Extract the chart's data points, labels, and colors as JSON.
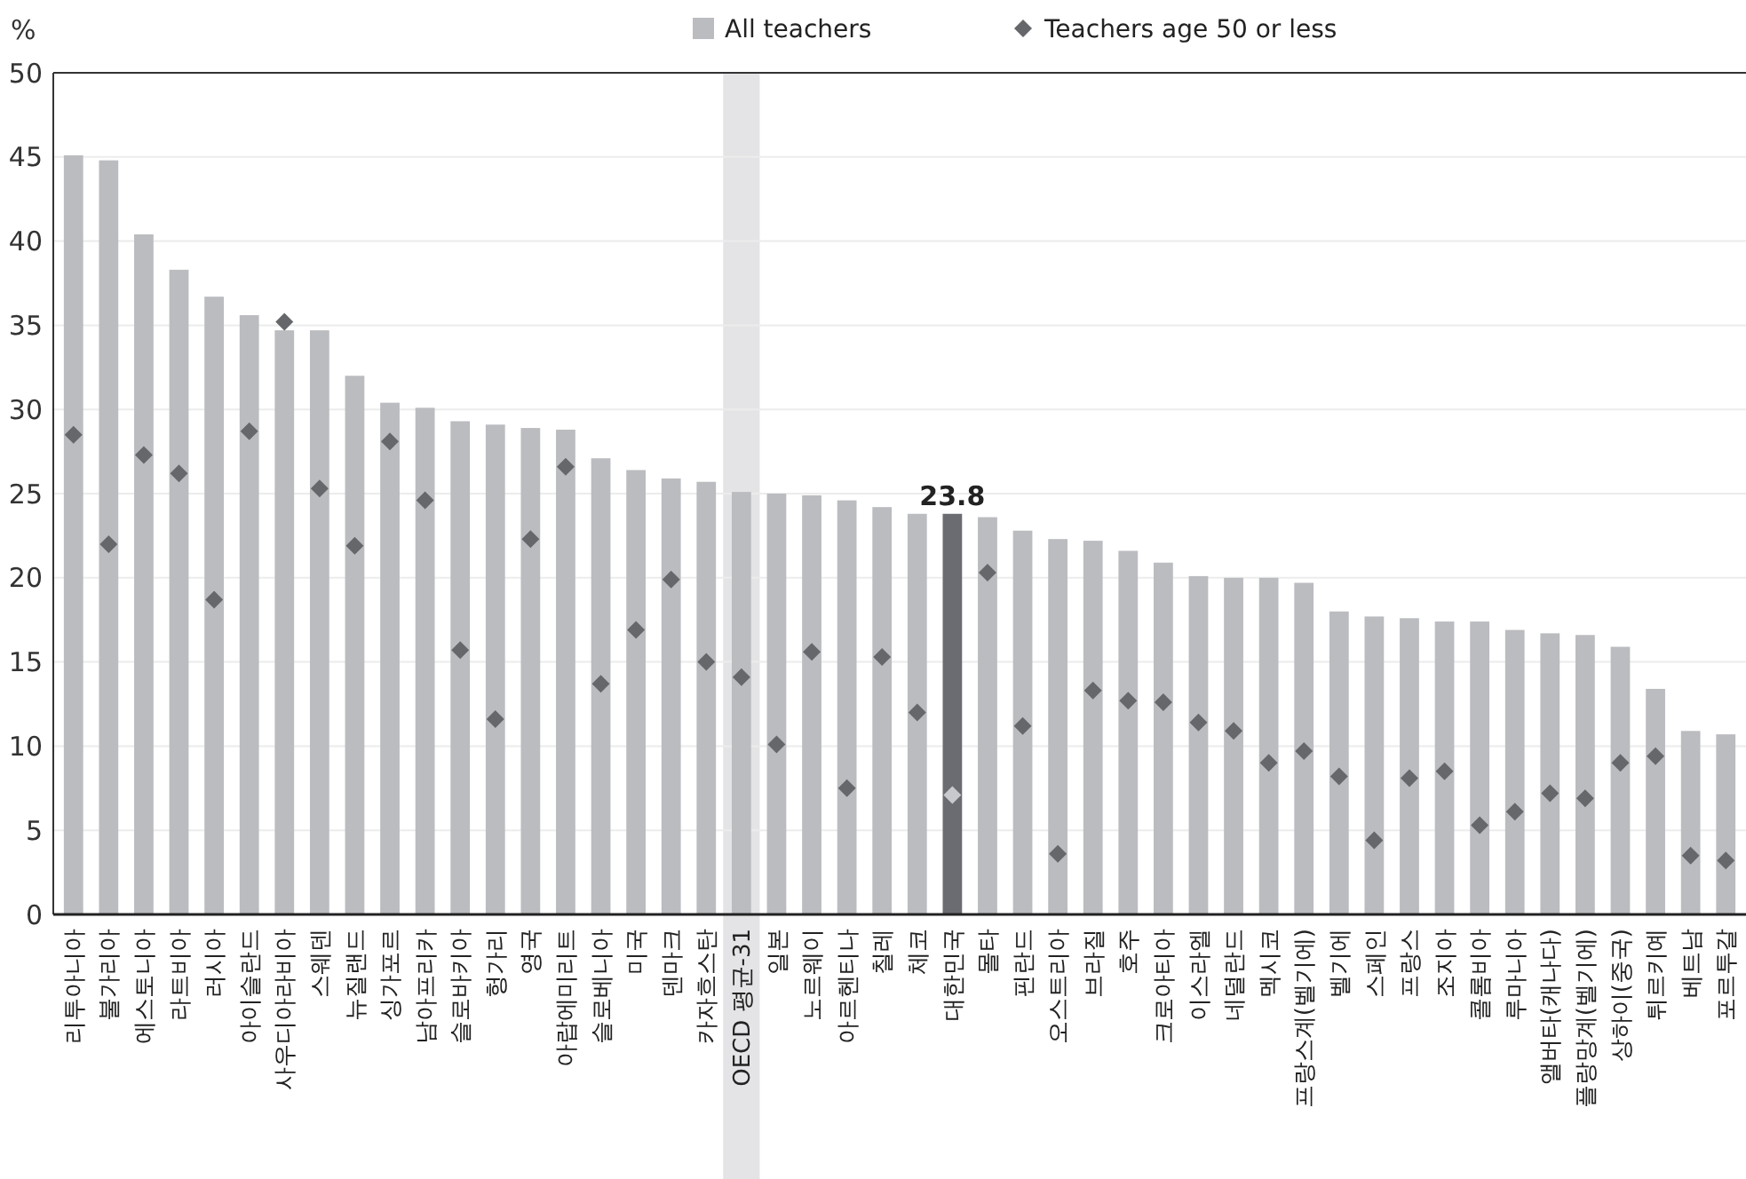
{
  "chart_data": {
    "type": "bar",
    "ylabel": "%",
    "categories": [
      "리투아니아",
      "불가리아",
      "에스토니아",
      "라트비아",
      "러시아",
      "아이슬란드",
      "사우디아라비아",
      "스웨덴",
      "뉴질랜드",
      "싱가포르",
      "남아프리카",
      "슬로바키아",
      "헝가리",
      "영국",
      "아랍에미리트",
      "슬로베니아",
      "미국",
      "덴마크",
      "카자흐스탄",
      "OECD 평균-31",
      "일본",
      "노르웨이",
      "아르헨티나",
      "칠레",
      "체코",
      "대한민국",
      "몰타",
      "핀란드",
      "오스트리아",
      "브라질",
      "호주",
      "크로아티아",
      "이스라엘",
      "네덜란드",
      "멕시코",
      "프랑스계(벨기에)",
      "벨기에",
      "스페인",
      "프랑스",
      "조지아",
      "콜롬비아",
      "루마니아",
      "앨버타(캐나다)",
      "플랑망계(벨기에)",
      "상하이(중국)",
      "튀르키예",
      "베트남",
      "포르투갈"
    ],
    "series": [
      {
        "name": "All teachers",
        "color": "#bbbcc0",
        "colors": [
          "#bbbcc0",
          "#bbbcc0",
          "#bbbcc0",
          "#bbbcc0",
          "#bbbcc0",
          "#bbbcc0",
          "#bbbcc0",
          "#bbbcc0",
          "#bbbcc0",
          "#bbbcc0",
          "#bbbcc0",
          "#bbbcc0",
          "#bbbcc0",
          "#bbbcc0",
          "#bbbcc0",
          "#bbbcc0",
          "#bbbcc0",
          "#bbbcc0",
          "#bbbcc0",
          "#bbbcc0",
          "#bbbcc0",
          "#bbbcc0",
          "#bbbcc0",
          "#bbbcc0",
          "#bbbcc0",
          "#6b6c71",
          "#bbbcc0",
          "#bbbcc0",
          "#bbbcc0",
          "#bbbcc0",
          "#bbbcc0",
          "#bbbcc0",
          "#bbbcc0",
          "#bbbcc0",
          "#bbbcc0",
          "#bbbcc0",
          "#bbbcc0",
          "#bbbcc0",
          "#bbbcc0",
          "#bbbcc0",
          "#bbbcc0",
          "#bbbcc0",
          "#bbbcc0",
          "#bbbcc0",
          "#bbbcc0",
          "#bbbcc0",
          "#bbbcc0",
          "#bbbcc0"
        ],
        "values": [
          45.1,
          44.8,
          40.4,
          38.3,
          36.7,
          35.6,
          34.7,
          34.7,
          32.0,
          30.4,
          30.1,
          29.3,
          29.1,
          28.9,
          28.8,
          27.1,
          26.4,
          25.9,
          25.7,
          25.1,
          25.0,
          24.9,
          24.6,
          24.2,
          23.8,
          23.8,
          23.6,
          22.8,
          22.3,
          22.2,
          21.6,
          20.9,
          20.1,
          20.0,
          20.0,
          19.7,
          18.0,
          17.7,
          17.6,
          17.4,
          17.4,
          16.9,
          16.7,
          16.6,
          15.9,
          13.4,
          10.9,
          10.7
        ],
        "value_labels": [
          null,
          null,
          null,
          null,
          null,
          null,
          null,
          null,
          null,
          null,
          null,
          null,
          null,
          null,
          null,
          null,
          null,
          null,
          null,
          null,
          null,
          null,
          null,
          null,
          null,
          "23.8",
          null,
          null,
          null,
          null,
          null,
          null,
          null,
          null,
          null,
          null,
          null,
          null,
          null,
          null,
          null,
          null,
          null,
          null,
          null,
          null,
          null,
          null
        ]
      },
      {
        "name": "Teachers age 50 or less",
        "type": "scatter",
        "marker": "diamond",
        "color": "#66676b",
        "colors": [
          "#66676b",
          "#66676b",
          "#66676b",
          "#66676b",
          "#66676b",
          "#66676b",
          "#66676b",
          "#66676b",
          "#66676b",
          "#66676b",
          "#66676b",
          "#66676b",
          "#66676b",
          "#66676b",
          "#66676b",
          "#66676b",
          "#66676b",
          "#66676b",
          "#66676b",
          "#66676b",
          "#66676b",
          "#66676b",
          "#66676b",
          "#66676b",
          "#66676b",
          "#c8c9cc",
          "#66676b",
          "#66676b",
          "#66676b",
          "#66676b",
          "#66676b",
          "#66676b",
          "#66676b",
          "#66676b",
          "#66676b",
          "#66676b",
          "#66676b",
          "#66676b",
          "#66676b",
          "#66676b",
          "#66676b",
          "#66676b",
          "#66676b",
          "#66676b",
          "#66676b",
          "#66676b",
          "#66676b",
          "#66676b"
        ],
        "x": [
          "리투아니아",
          "불가리아",
          "에스토니아",
          "라트비아",
          "러시아",
          "아이슬란드",
          "사우디아라비아",
          "스웨덴",
          "뉴질랜드",
          "싱가포르",
          "남아프리카",
          "슬로바키아",
          "헝가리",
          "영국",
          "아랍에미리트",
          "슬로베니아",
          "미국",
          "덴마크",
          "카자흐스탄",
          "OECD 평균-31",
          "일본",
          "노르웨이",
          "아르헨티나",
          "칠레",
          "체코",
          "대한민국",
          "몰타",
          "핀란드",
          "오스트리아",
          "브라질",
          "호주",
          "크로아티아",
          "이스라엘",
          "네덜란드",
          "멕시코",
          "프랑스계(벨기에)",
          "벨기에",
          "스페인",
          "프랑스",
          "조지아",
          "콜롬비아",
          "루마니아",
          "앨버타(캐나다)",
          "플랑망계(벨기에)",
          "상하이(중국)",
          "튀르키예",
          "베트남",
          "포르투갈"
        ],
        "values": [
          28.5,
          22.0,
          27.3,
          26.2,
          18.7,
          28.7,
          35.2,
          25.3,
          21.9,
          28.1,
          24.6,
          15.7,
          11.6,
          22.3,
          26.6,
          13.7,
          16.9,
          19.9,
          15.0,
          14.1,
          10.1,
          15.6,
          7.5,
          15.3,
          12.0,
          7.1,
          20.3,
          11.2,
          3.6,
          13.3,
          12.7,
          12.6,
          11.4,
          10.9,
          9.0,
          9.7,
          8.2,
          4.4,
          8.1,
          8.5,
          5.3,
          6.1,
          7.2,
          6.9,
          9.0,
          9.4,
          3.5,
          3.2
        ]
      }
    ],
    "ylim": [
      0,
      50
    ],
    "yticks": [
      0,
      5,
      10,
      15,
      20,
      25,
      30,
      35,
      40,
      45,
      50
    ],
    "grid": "y",
    "legend": "top",
    "bands": [
      {
        "axis": "x",
        "from": "OECD 평균-31",
        "to": "OECD 평균-31",
        "color": "#e4e4e6"
      }
    ]
  }
}
